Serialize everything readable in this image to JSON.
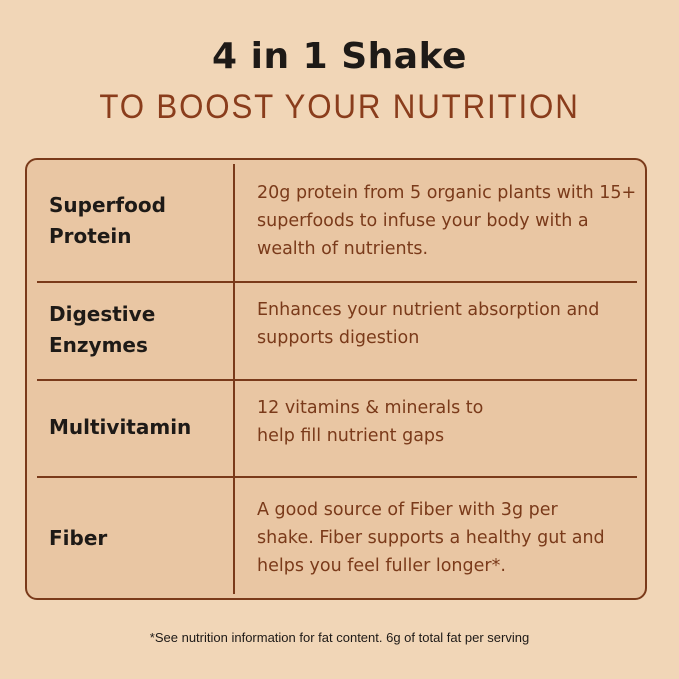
{
  "title": "4 in 1 Shake",
  "subtitle": "TO BOOST YOUR NUTRITION",
  "rows": [
    {
      "label": "Superfood Protein",
      "desc": "20g protein from 5 organic plants with 15+ superfoods to infuse your body with a wealth of nutrients."
    },
    {
      "label": "Digestive Enzymes",
      "desc": "Enhances your nutrient absorption and supports digestion"
    },
    {
      "label": "Multivitamin",
      "desc": "12 vitamins & minerals to help fill nutrient gaps"
    },
    {
      "label": "Fiber",
      "desc": "A good source of Fiber with 3g per shake. Fiber supports a healthy gut and helps you feel fuller longer*."
    }
  ],
  "footnote": "*See nutrition information for fat content. 6g of total fat per serving",
  "colors": {
    "background": "#f1d6b7",
    "table": "#e9c6a3",
    "accent": "#7a3a1a"
  }
}
